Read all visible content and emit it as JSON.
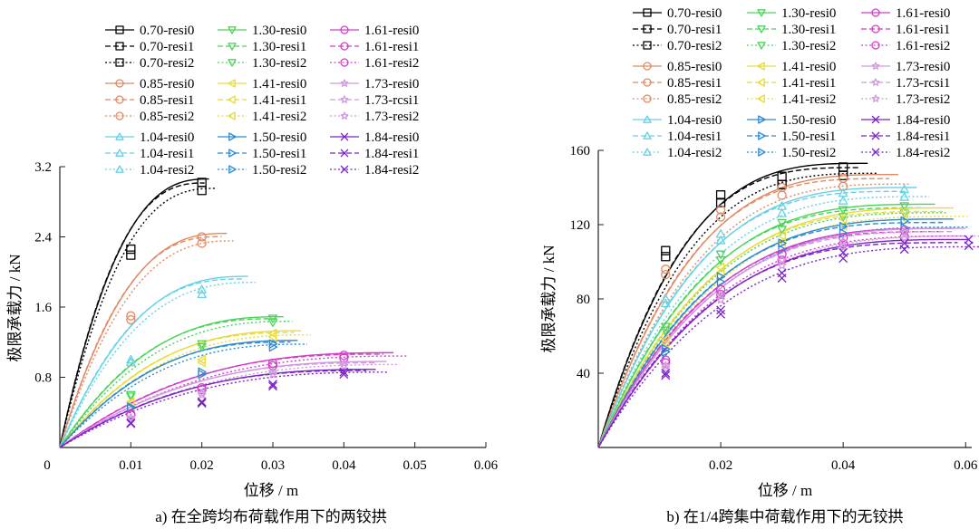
{
  "chart_data": [
    {
      "type": "line",
      "panel": "a",
      "caption": "a)  在全跨均布荷载作用下的两铰拱",
      "xlabel": "位移 / m",
      "ylabel": "极限承载力 / kN",
      "xlim": [
        0,
        0.06
      ],
      "ylim": [
        0,
        3.2
      ],
      "xticks": [
        "0",
        "0.01",
        "0.02",
        "0.03",
        "0.04",
        "0.05",
        "0.06"
      ],
      "yticks": [
        "0.8",
        "1.6",
        "2.4",
        "3.2"
      ],
      "legend_position": "top",
      "groups": [
        {
          "ratio": "0.70",
          "color": "#000000",
          "marker": "square",
          "xmax": 0.021,
          "ymax": 3.06,
          "xmark": [
            0.01,
            0.02
          ],
          "ymark": [
            2.26,
            3.02
          ]
        },
        {
          "ratio": "0.85",
          "color": "#e08a64",
          "marker": "circle",
          "xmax": 0.0235,
          "ymax": 2.44,
          "xmark": [
            0.01,
            0.02
          ],
          "ymark": [
            1.5,
            2.4
          ]
        },
        {
          "ratio": "1.04",
          "color": "#66d2e6",
          "marker": "triangle-up",
          "xmax": 0.0265,
          "ymax": 1.95,
          "xmark": [
            0.01,
            0.02
          ],
          "ymark": [
            1.0,
            1.8
          ]
        },
        {
          "ratio": "1.30",
          "color": "#4cd45a",
          "marker": "triangle-down",
          "xmax": 0.0315,
          "ymax": 1.49,
          "xmark": [
            0.01,
            0.02,
            0.03
          ],
          "ymark": [
            0.6,
            1.18,
            1.47
          ]
        },
        {
          "ratio": "1.41",
          "color": "#e8dc3a",
          "marker": "triangle-left",
          "xmax": 0.034,
          "ymax": 1.33,
          "xmark": [
            0.01,
            0.02,
            0.03
          ],
          "ymark": [
            0.52,
            1.0,
            1.3
          ]
        },
        {
          "ratio": "1.50",
          "color": "#2e8ad0",
          "marker": "triangle-right",
          "xmax": 0.0335,
          "ymax": 1.22,
          "xmark": [
            0.01,
            0.02,
            0.03
          ],
          "ymark": [
            0.46,
            0.86,
            1.18
          ]
        },
        {
          "ratio": "1.61",
          "color": "#d23ec8",
          "marker": "circle",
          "xmax": 0.047,
          "ymax": 1.08,
          "xmark": [
            0.01,
            0.02,
            0.03,
            0.04
          ],
          "ymark": [
            0.38,
            0.68,
            0.96,
            1.05
          ]
        },
        {
          "ratio": "1.73",
          "color": "#d09ade",
          "marker": "star",
          "xmax": 0.046,
          "ymax": 0.98,
          "xmark": [
            0.01,
            0.02,
            0.03,
            0.04
          ],
          "ymark": [
            0.34,
            0.62,
            0.86,
            0.96
          ]
        },
        {
          "ratio": "1.84",
          "color": "#7a24c8",
          "marker": "x",
          "xmax": 0.0445,
          "ymax": 0.89,
          "xmark": [
            0.01,
            0.02,
            0.03,
            0.04
          ],
          "ymark": [
            0.28,
            0.52,
            0.72,
            0.86
          ]
        }
      ],
      "variants": [
        "resi0",
        "resi1",
        "resi2"
      ]
    },
    {
      "type": "line",
      "panel": "b",
      "caption": "b)  在1/4跨集中荷载作用下的无铰拱",
      "xlabel": "位移 / m",
      "ylabel": "极限承载力 / kN",
      "xlim": [
        0,
        0.061
      ],
      "ylim": [
        0,
        160
      ],
      "xticks": [
        "0.02",
        "0.04",
        "0.06"
      ],
      "yticks": [
        "40",
        "80",
        "120",
        "160"
      ],
      "legend_position": "top",
      "groups": [
        {
          "ratio": "0.70",
          "color": "#000000",
          "marker": "square",
          "xmax": 0.044,
          "ymax": 153,
          "xmark": [
            0.011,
            0.02,
            0.03,
            0.04
          ],
          "ymark": [
            106,
            136,
            146,
            151
          ]
        },
        {
          "ratio": "0.85",
          "color": "#e08a64",
          "marker": "circle",
          "xmax": 0.049,
          "ymax": 147,
          "xmark": [
            0.011,
            0.02,
            0.03,
            0.04
          ],
          "ymark": [
            96,
            128,
            140,
            145
          ]
        },
        {
          "ratio": "1.04",
          "color": "#66d2e6",
          "marker": "triangle-up",
          "xmax": 0.052,
          "ymax": 140,
          "xmark": [
            0.011,
            0.02,
            0.03,
            0.04,
            0.05
          ],
          "ymark": [
            80,
            115,
            130,
            137,
            139
          ]
        },
        {
          "ratio": "1.30",
          "color": "#4cd45a",
          "marker": "triangle-down",
          "xmax": 0.055,
          "ymax": 131,
          "xmark": [
            0.011,
            0.02,
            0.03,
            0.04,
            0.05
          ],
          "ymark": [
            65,
            104,
            121,
            128,
            130
          ]
        },
        {
          "ratio": "1.41",
          "color": "#e8dc3a",
          "marker": "triangle-left",
          "xmax": 0.058,
          "ymax": 129,
          "xmark": [
            0.011,
            0.02,
            0.03,
            0.04,
            0.05
          ],
          "ymark": [
            58,
            97,
            114,
            123,
            127
          ]
        },
        {
          "ratio": "1.50",
          "color": "#2e8ad0",
          "marker": "triangle-right",
          "xmax": 0.058,
          "ymax": 123,
          "xmark": [
            0.011,
            0.02,
            0.03,
            0.04,
            0.05
          ],
          "ymark": [
            53,
            92,
            110,
            119,
            122
          ]
        },
        {
          "ratio": "1.61",
          "color": "#d23ec8",
          "marker": "circle",
          "xmax": 0.058,
          "ymax": 118,
          "xmark": [
            0.011,
            0.02,
            0.03,
            0.04,
            0.05
          ],
          "ymark": [
            47,
            85,
            104,
            113,
            117
          ]
        },
        {
          "ratio": "1.73",
          "color": "#d09ade",
          "marker": "star",
          "xmax": 0.06,
          "ymax": 118,
          "xmark": [
            0.011,
            0.02,
            0.03,
            0.04,
            0.05
          ],
          "ymark": [
            44,
            82,
            101,
            111,
            116
          ]
        },
        {
          "ratio": "1.84",
          "color": "#7a24c8",
          "marker": "x",
          "xmax": 0.0605,
          "ymax": 112,
          "xmark": [
            0.011,
            0.02,
            0.03,
            0.04,
            0.05,
            0.0605
          ],
          "ymark": [
            40,
            74,
            94,
            105,
            110,
            112
          ]
        }
      ],
      "variants": [
        "resi0",
        "resi1",
        "resi2"
      ]
    }
  ],
  "legend_a": [
    [
      [
        "0.70-resi0",
        "0.70-resi1",
        "0.70-resi2"
      ],
      [
        "1.30-resi0",
        "1.30-resi1",
        "1.30-resi2"
      ],
      [
        "1.61-resi0",
        "1.61-resi1",
        "1.61-resi2"
      ]
    ],
    [
      [
        "0.85-resi0",
        "0.85-resi1",
        "0.85-resi2"
      ],
      [
        "1.41-resi0",
        "1.41-resi1",
        "1.41-resi2"
      ],
      [
        "1.73-resi0",
        "1.73-rcsi1",
        "1.73-resi2"
      ]
    ],
    [
      [
        "1.04-resi0",
        "1.04-resi1",
        "1.04-resi2"
      ],
      [
        "1.50-resi0",
        "1.50-resi1",
        "1.50-resi2"
      ],
      [
        "1.84-resi0",
        "1.84-resi1",
        "1.84-resi2"
      ]
    ]
  ],
  "legend_b": [
    [
      [
        "0.70-resi0",
        "0.70-resi1",
        "0.70-resi2"
      ],
      [
        "1.30-resi0",
        "1.30-resi1",
        "1.30-resi2"
      ],
      [
        "1.61-resi0",
        "1.61-resi1",
        "1.61-resi2"
      ]
    ],
    [
      [
        "0.85-resi0",
        "0.85-resi1",
        "0.85-resi2"
      ],
      [
        "1.41-resi0",
        "1.41-resi1",
        "1.41-resi2"
      ],
      [
        "1.73-resi0",
        "1.73-rcsi1",
        "1.73-resi2"
      ]
    ],
    [
      [
        "1.04-resi0",
        "1.04-resi1",
        "1.04-resi2"
      ],
      [
        "1.50-resi0",
        "1.50-resi1",
        "1.50-resi2"
      ],
      [
        "1.84-resi0",
        "1.84-resi1",
        "1.84-resi2"
      ]
    ]
  ]
}
